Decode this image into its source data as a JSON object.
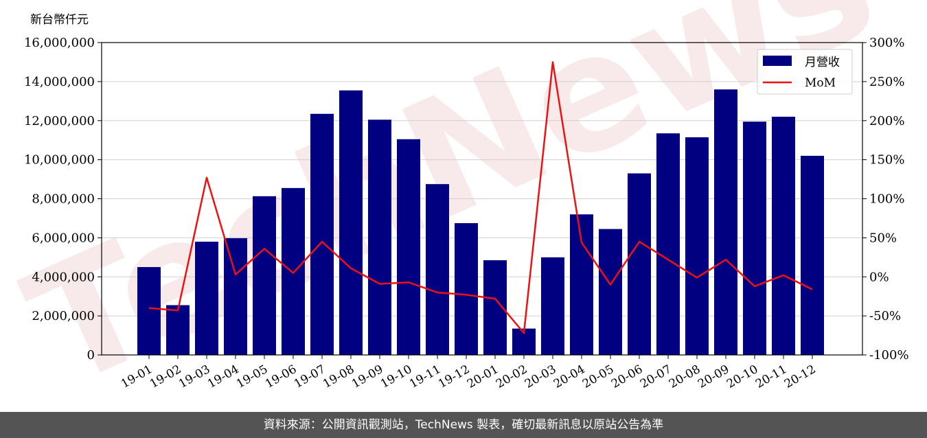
{
  "chart_data": {
    "type": "bar",
    "left_unit_label": "新台幣仟元",
    "categories": [
      "19-01",
      "19-02",
      "19-03",
      "19-04",
      "19-05",
      "19-06",
      "19-07",
      "19-08",
      "19-09",
      "19-10",
      "19-11",
      "19-12",
      "20-01",
      "20-02",
      "20-03",
      "20-04",
      "20-05",
      "20-06",
      "20-07",
      "20-08",
      "20-09",
      "20-10",
      "20-11",
      "20-12"
    ],
    "series": [
      {
        "name": "月營收",
        "kind": "bar",
        "axis": "left",
        "color": "#000080",
        "values": [
          4500000,
          2550000,
          5800000,
          5980000,
          8130000,
          8550000,
          12350000,
          13550000,
          12050000,
          11050000,
          8750000,
          6750000,
          4850000,
          1350000,
          5000000,
          7200000,
          6450000,
          9300000,
          11350000,
          11150000,
          13600000,
          11950000,
          12200000,
          10200000
        ]
      },
      {
        "name": "MoM",
        "kind": "line",
        "axis": "right",
        "color": "#ee1111",
        "values": [
          -40,
          -43,
          127,
          3,
          36,
          5,
          45,
          11,
          -9,
          -7,
          -20,
          -23,
          -28,
          -72,
          275,
          44,
          -10,
          45,
          22,
          -1,
          22,
          -12,
          2,
          -16
        ]
      }
    ],
    "left_axis": {
      "ylim": [
        0,
        16000000
      ],
      "ticks": [
        0,
        2000000,
        4000000,
        6000000,
        8000000,
        10000000,
        12000000,
        14000000,
        16000000
      ],
      "tick_labels": [
        "0",
        "2,000,000",
        "4,000,000",
        "6,000,000",
        "8,000,000",
        "10,000,000",
        "12,000,000",
        "14,000,000",
        "16,000,000"
      ]
    },
    "right_axis": {
      "ylim": [
        -100,
        300
      ],
      "ticks": [
        -100,
        -50,
        0,
        50,
        100,
        150,
        200,
        250,
        300
      ],
      "tick_labels": [
        "-100%",
        "-50%",
        "0%",
        "50%",
        "100%",
        "150%",
        "200%",
        "250%",
        "300%"
      ]
    },
    "grid": true,
    "legend_position": "top-right",
    "watermark": "TechNews"
  },
  "footer": {
    "text": "資料來源：公開資訊觀測站，TechNews 製表，確切最新訊息以原站公告為準",
    "background": "#545454"
  }
}
